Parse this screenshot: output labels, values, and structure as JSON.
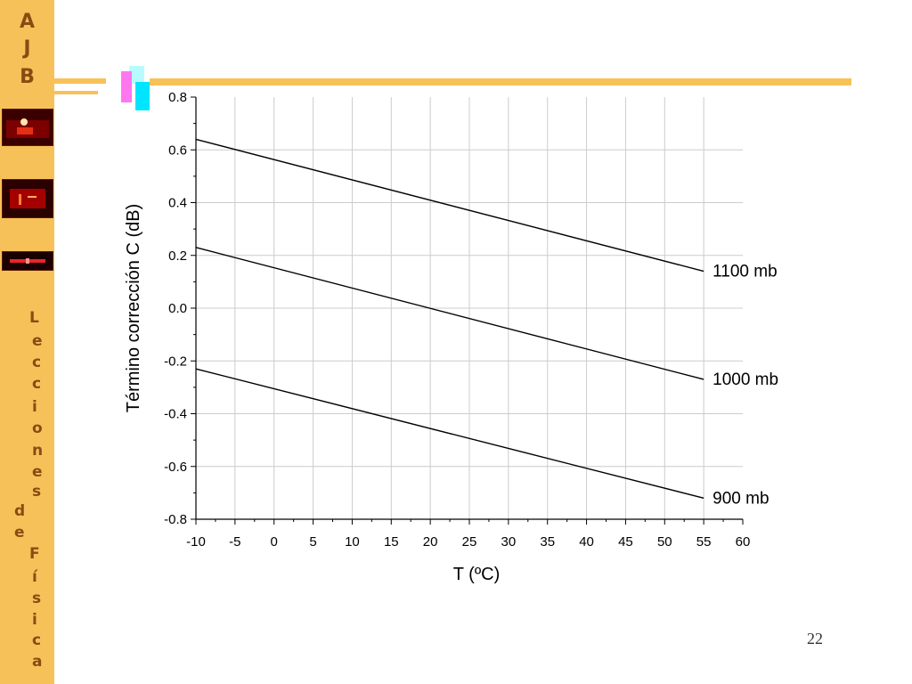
{
  "sidebar": {
    "logo_letters": [
      "A",
      "J",
      "B"
    ],
    "title_chars": [
      "L",
      "e",
      "c",
      "c",
      "i",
      "o",
      "n",
      "e",
      "s",
      "d",
      "e",
      "F",
      "í",
      "s",
      "i",
      "c",
      "a"
    ]
  },
  "page_number": "22",
  "colors": {
    "sidebar": "#f7c15a",
    "logo_text": "#8a4b12",
    "accent_cyan": "#00e5ff",
    "accent_magenta": "#ff77ee"
  },
  "chart_data": {
    "type": "line",
    "xlabel": "T (ºC)",
    "ylabel": "Término corrección C (dB)",
    "xlim": [
      -10,
      60
    ],
    "ylim": [
      -0.8,
      0.8
    ],
    "xticks": [
      "-10",
      "-5",
      "0",
      "5",
      "10",
      "15",
      "20",
      "25",
      "30",
      "35",
      "40",
      "45",
      "50",
      "55",
      "60"
    ],
    "yticks": [
      "0.8",
      "0.6",
      "0.4",
      "0.2",
      "0.0",
      "-0.2",
      "-0.4",
      "-0.6",
      "-0.8"
    ],
    "grid": true,
    "series": [
      {
        "name": "1100 mb",
        "x": [
          -10,
          55
        ],
        "y": [
          0.64,
          0.14
        ]
      },
      {
        "name": "1000 mb",
        "x": [
          -10,
          55
        ],
        "y": [
          0.23,
          -0.27
        ]
      },
      {
        "name": "900 mb",
        "x": [
          -10,
          55
        ],
        "y": [
          -0.23,
          -0.72
        ]
      }
    ]
  }
}
